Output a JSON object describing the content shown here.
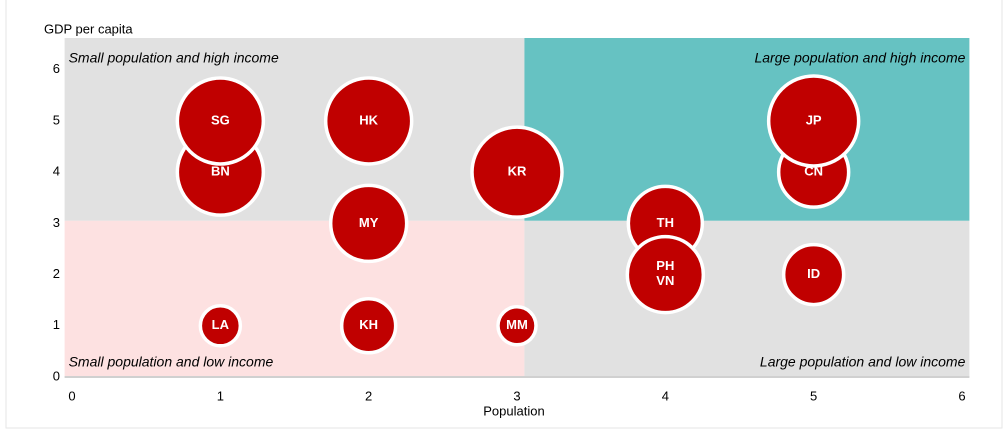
{
  "chart_data": {
    "type": "scatter",
    "x_label": "Population",
    "y_label": "GDP per capita",
    "xlim": [
      -0.05,
      6.05
    ],
    "ylim": [
      0,
      6.62
    ],
    "xticks": [
      0,
      1,
      2,
      3,
      4,
      5,
      6
    ],
    "yticks": [
      0,
      1,
      2,
      3,
      4,
      5,
      6
    ],
    "split": [
      3.05,
      3.05
    ],
    "quadrants": [
      {
        "label": "Small population and high income",
        "corner": "upper left",
        "color": "#e1e1e1",
        "text_color": "#8c8c8c"
      },
      {
        "label": "Large population and high income",
        "corner": "upper right",
        "color": "#66c2c2",
        "text_color": "#1b6e6e"
      },
      {
        "label": "Small population and low income",
        "corner": "lower left",
        "color": "#fde1e1",
        "text_color": "#c00000"
      },
      {
        "label": "Large population and low income",
        "corner": "lower right",
        "color": "#e1e1e1",
        "text_color": "#8c8c8c"
      }
    ],
    "series": [
      {
        "color": "#c00000",
        "labels": [
          "BN",
          "SG",
          "HK",
          "MY",
          "KR",
          "TH",
          [
            "PH",
            "VN"
          ],
          "CN",
          "JP",
          "ID",
          "LA",
          "KH",
          "MM"
        ],
        "x": [
          1,
          1,
          2,
          2,
          3,
          4,
          4,
          5,
          5,
          5,
          1,
          2,
          3
        ],
        "y": [
          4,
          5,
          5,
          3,
          4,
          3,
          2,
          4,
          5,
          2,
          1,
          1,
          1
        ],
        "sizes": [
          43,
          43,
          43,
          38,
          45,
          37,
          38,
          35,
          45,
          30,
          20,
          27,
          19
        ]
      }
    ]
  }
}
